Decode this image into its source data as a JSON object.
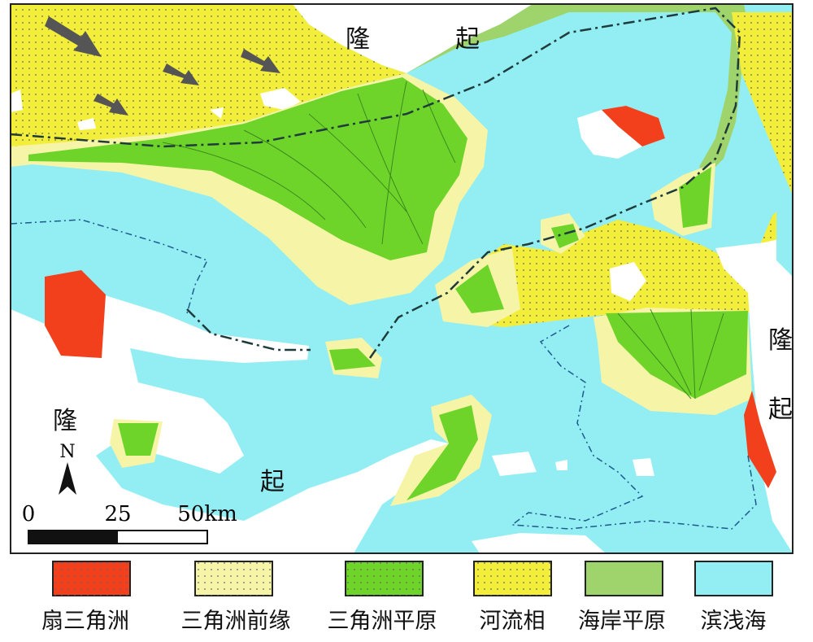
{
  "map_labels": [
    "隆",
    "起",
    "隆",
    "起",
    "隆",
    "起"
  ],
  "north": "N",
  "scale": [
    "0",
    "25",
    "50km"
  ],
  "legend": [
    {
      "name": "扇三角洲",
      "color": "#f2401c"
    },
    {
      "name": "三角洲前缘",
      "color": "#f6f4a6"
    },
    {
      "name": "三角洲平原",
      "color": "#6fd42a"
    },
    {
      "name": "河流相",
      "color": "#f3ee3a"
    },
    {
      "name": "海岸平原",
      "color": "#9fd46c"
    },
    {
      "name": "滨浅海",
      "color": "#93eef4"
    }
  ]
}
